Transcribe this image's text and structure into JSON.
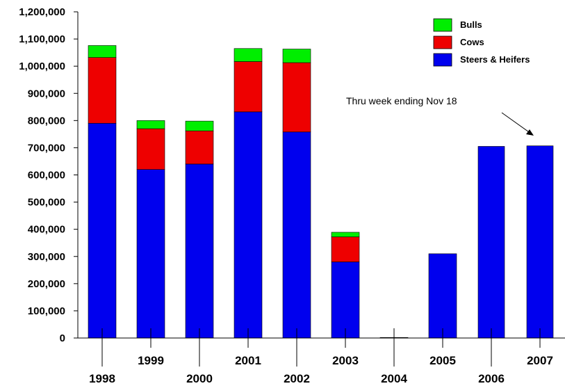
{
  "chart_data": {
    "type": "bar",
    "stacked": true,
    "categories": [
      "1998",
      "1999",
      "2000",
      "2001",
      "2002",
      "2003",
      "2004",
      "2005",
      "2006",
      "2007"
    ],
    "series": [
      {
        "name": "Steers & Heifers",
        "color": "#0000ee",
        "values": [
          790000,
          620000,
          640000,
          832000,
          758000,
          280000,
          0,
          310000,
          705000,
          707000
        ]
      },
      {
        "name": "Cows",
        "color": "#ee0000",
        "values": [
          242000,
          150000,
          122000,
          185000,
          255000,
          92000,
          0,
          0,
          0,
          0
        ]
      },
      {
        "name": "Bulls",
        "color": "#00ee00",
        "values": [
          44000,
          30000,
          36000,
          48000,
          50000,
          17000,
          2000,
          0,
          0,
          0
        ]
      }
    ],
    "ylim": [
      0,
      1200000
    ],
    "yticks": [
      0,
      100000,
      200000,
      300000,
      400000,
      500000,
      600000,
      700000,
      800000,
      900000,
      1000000,
      1100000,
      1200000
    ],
    "ytick_labels": [
      "0",
      "100,000",
      "200,000",
      "300,000",
      "400,000",
      "500,000",
      "600,000",
      "700,000",
      "800,000",
      "900,000",
      "1,000,000",
      "1,100,000",
      "1,200,000"
    ],
    "legend": {
      "position": "top-right",
      "entries": [
        {
          "label": "Bulls",
          "color": "#00ee00"
        },
        {
          "label": "Cows",
          "color": "#ee0000"
        },
        {
          "label": "Steers & Heifers",
          "color": "#0000ee"
        }
      ]
    },
    "annotation": {
      "text": "Thru week ending Nov 18",
      "target_category": "2007"
    },
    "grid": false
  }
}
